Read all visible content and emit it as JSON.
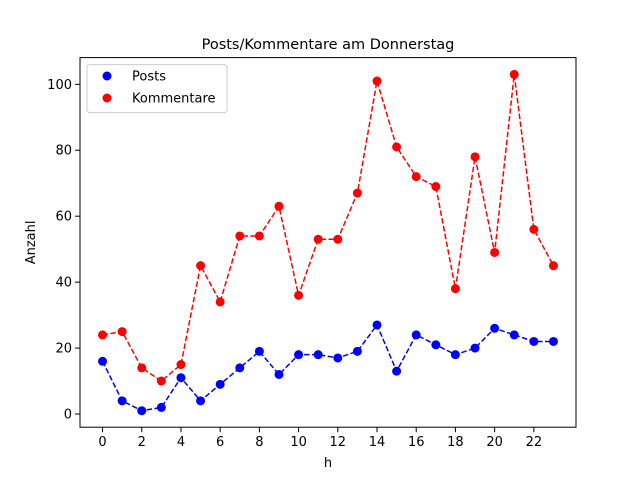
{
  "chart_data": {
    "type": "line",
    "title": "Posts/Kommentare am Donnerstag",
    "xlabel": "h",
    "ylabel": "Anzahl",
    "xlim": [
      -1.15,
      24.15
    ],
    "ylim": [
      -4.0,
      108.1
    ],
    "xticks": [
      0,
      2,
      4,
      6,
      8,
      10,
      12,
      14,
      16,
      18,
      20,
      22
    ],
    "yticks": [
      0,
      20,
      40,
      60,
      80,
      100
    ],
    "grid": false,
    "legend_position": "top-left",
    "x": [
      0,
      1,
      2,
      3,
      4,
      5,
      6,
      7,
      8,
      9,
      10,
      11,
      12,
      13,
      14,
      15,
      16,
      17,
      18,
      19,
      20,
      21,
      22,
      23
    ],
    "series": [
      {
        "name": "Posts",
        "color": "#0000ff",
        "values": [
          16,
          4,
          1,
          2,
          11,
          4,
          9,
          14,
          19,
          12,
          18,
          18,
          17,
          19,
          27,
          13,
          24,
          21,
          18,
          20,
          26,
          24,
          22,
          22
        ]
      },
      {
        "name": "Kommentare",
        "color": "#ff0000",
        "values": [
          24,
          25,
          14,
          10,
          15,
          45,
          34,
          54,
          54,
          63,
          36,
          53,
          53,
          67,
          101,
          81,
          72,
          69,
          38,
          78,
          49,
          103,
          56,
          45
        ]
      }
    ]
  }
}
